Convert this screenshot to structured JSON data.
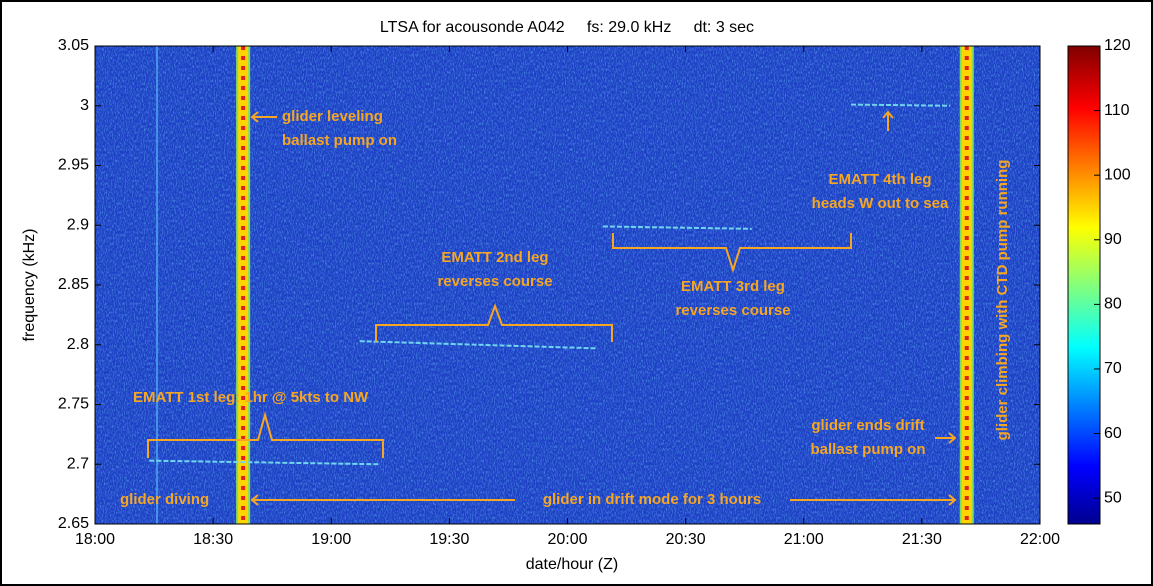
{
  "chart_data": {
    "type": "spectrogram",
    "title": "LTSA for acousonde A042     fs: 29.0 kHz     dt: 3 sec",
    "x_label": "date/hour (Z)",
    "y_label": "frequency (kHz)",
    "xlim": [
      18,
      22
    ],
    "xticks": [
      {
        "value": 18,
        "label": "18:00"
      },
      {
        "value": 18.5,
        "label": "18:30"
      },
      {
        "value": 19,
        "label": "19:00"
      },
      {
        "value": 19.5,
        "label": "19:30"
      },
      {
        "value": 20,
        "label": "20:00"
      },
      {
        "value": 20.5,
        "label": "20:30"
      },
      {
        "value": 21,
        "label": "21:00"
      },
      {
        "value": 21.5,
        "label": "21:30"
      },
      {
        "value": 22,
        "label": "22:00"
      }
    ],
    "ylim": [
      2.65,
      3.05
    ],
    "yticks": [
      2.65,
      2.7,
      2.75,
      2.8,
      2.85,
      2.9,
      2.95,
      3,
      3.05
    ],
    "colorbar": {
      "lim": [
        46,
        120
      ],
      "ticks": [
        50,
        60,
        70,
        80,
        90,
        100,
        110,
        120
      ],
      "colormap": "jet"
    },
    "bands": [
      {
        "x": 18.627
      },
      {
        "x": 21.69
      }
    ],
    "tonals": [
      {
        "x": [
          18.23,
          19.2
        ],
        "y": [
          2.703,
          2.7
        ]
      },
      {
        "x": [
          19.12,
          20.12
        ],
        "y": [
          2.803,
          2.797
        ]
      },
      {
        "x": [
          20.15,
          20.78
        ],
        "y": [
          2.899,
          2.897
        ]
      },
      {
        "x": [
          21.2,
          21.62
        ],
        "y": [
          3.001,
          3.0
        ]
      }
    ],
    "annotations": [
      {
        "lines": [
          "glider leveling",
          "ballast pump on"
        ]
      },
      {
        "lines": [
          "EMATT 4th leg",
          "heads W out to sea"
        ]
      },
      {
        "lines": [
          "EMATT 2nd leg",
          "reverses course"
        ]
      },
      {
        "lines": [
          "EMATT 3rd leg",
          "reverses course"
        ]
      },
      {
        "lines": [
          "EMATT 1st leg: 1hr @ 5kts to NW"
        ]
      },
      {
        "lines": [
          "glider ends drift",
          "ballast pump on"
        ]
      },
      {
        "lines": [
          "glider diving"
        ]
      },
      {
        "lines": [
          "glider in drift mode for 3 hours"
        ]
      },
      {
        "lines": [
          "glider climbing with CTD pump running"
        ]
      }
    ]
  }
}
